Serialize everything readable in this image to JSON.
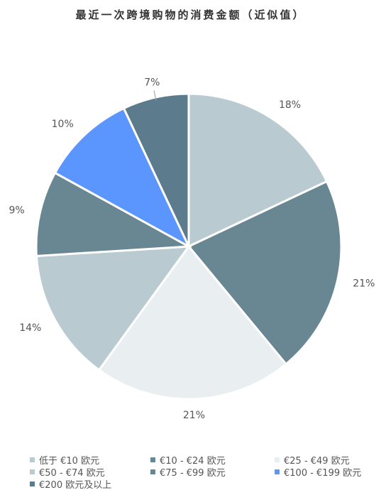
{
  "chart_data": {
    "type": "pie",
    "title": "最近一次跨境购物的消费金额（近似值）",
    "slices": [
      {
        "label": "低于 €10 欧元",
        "value": 18,
        "display": "18%",
        "color": "#b9cad1"
      },
      {
        "label": "€10 - €24 欧元",
        "value": 21,
        "display": "21%",
        "color": "#688793"
      },
      {
        "label": "€25 - €49 欧元",
        "value": 21,
        "display": "21%",
        "color": "#e9eef0"
      },
      {
        "label": "€50 - €74 欧元",
        "value": 14,
        "display": "14%",
        "color": "#b9cad1"
      },
      {
        "label": "€75 - €99 欧元",
        "value": 9,
        "display": "9%",
        "color": "#688793"
      },
      {
        "label": "€100 - €199 欧元",
        "value": 10,
        "display": "10%",
        "color": "#5b96ff"
      },
      {
        "label": "€200 欧元及以上",
        "value": 7,
        "display": "7%",
        "color": "#5c7b8c"
      }
    ],
    "legend_position": "bottom"
  }
}
